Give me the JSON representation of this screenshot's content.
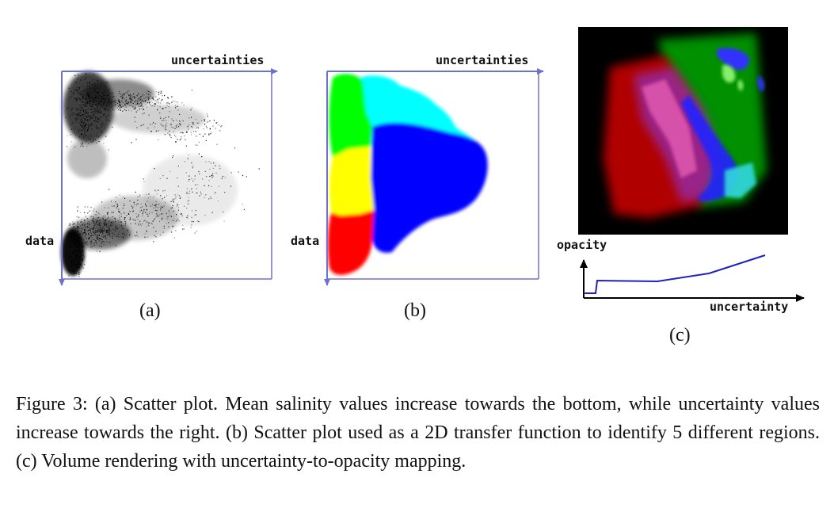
{
  "panel_a": {
    "x_axis_label": "uncertainties",
    "y_axis_label": "data",
    "sublabel": "(a)"
  },
  "panel_b": {
    "x_axis_label": "uncertainties",
    "y_axis_label": "data",
    "sublabel": "(b)",
    "region_colors": [
      "#00ff00",
      "#00ffff",
      "#0000ff",
      "#ffff00",
      "#ff0000"
    ]
  },
  "panel_c": {
    "x_axis_label": "uncertainty",
    "y_axis_label": "opacity",
    "sublabel": "(c)",
    "curve_color": "#2020c0"
  },
  "caption": {
    "text": "Figure 3: (a) Scatter plot. Mean salinity values increase towards the bottom, while uncertainty values increase towards the right. (b) Scatter plot used as a 2D transfer function to identify 5 different regions. (c) Volume rendering with uncertainty-to-opacity mapping."
  }
}
